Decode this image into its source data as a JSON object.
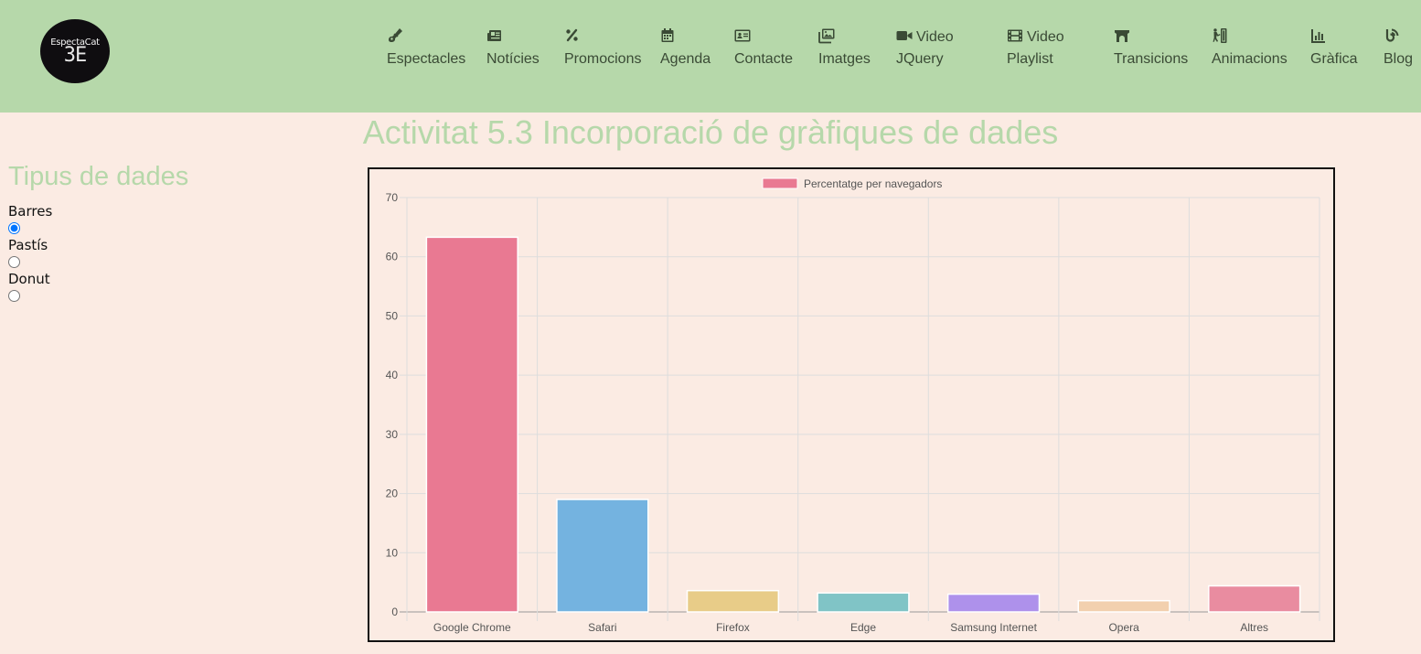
{
  "logo": {
    "name": "EspectaCat",
    "mark": "ЗE"
  },
  "nav": [
    {
      "icon": "guitar-icon",
      "label": "Espectacles"
    },
    {
      "icon": "newspaper-icon",
      "label": "Notícies"
    },
    {
      "icon": "percent-icon",
      "label": "Promocions"
    },
    {
      "icon": "calendar-icon",
      "label": "Agenda"
    },
    {
      "icon": "address-card-icon",
      "label": "Contacte"
    },
    {
      "icon": "images-icon",
      "label": "Imatges"
    },
    {
      "icon": "video-icon",
      "label": "Video JQuery"
    },
    {
      "icon": "film-icon",
      "label": "Video Playlist"
    },
    {
      "icon": "bridge-icon",
      "label": "Transicions"
    },
    {
      "icon": "animation-icon",
      "label": "Animacions"
    },
    {
      "icon": "chart-icon",
      "label": "Gràfica"
    },
    {
      "icon": "blog-icon",
      "label": "Blog"
    }
  ],
  "page_title": "Activitat 5.3 Incorporació de gràfiques de dades",
  "sidebar": {
    "title": "Tipus de dades",
    "options": [
      {
        "label": "Barres",
        "checked": true
      },
      {
        "label": "Pastís",
        "checked": false
      },
      {
        "label": "Donut",
        "checked": false
      }
    ]
  },
  "chart_data": {
    "type": "bar",
    "categories": [
      "Google Chrome",
      "Safari",
      "Firefox",
      "Edge",
      "Samsung Internet",
      "Opera",
      "Altres"
    ],
    "series": [
      {
        "name": "Percentatge per navegadors",
        "values": [
          63.3,
          19,
          3.6,
          3.2,
          3.0,
          1.9,
          4.4
        ]
      }
    ],
    "colors": [
      "#e97992",
      "#74b3e0",
      "#e8cc88",
      "#80c4c6",
      "#ae91eb",
      "#f2d0ae",
      "#e98ca0"
    ],
    "legend_color": "#e97992",
    "ylim": [
      0,
      70
    ],
    "yticks": [
      0,
      10,
      20,
      30,
      40,
      50,
      60,
      70
    ],
    "grid": true,
    "legend_position": "top"
  }
}
